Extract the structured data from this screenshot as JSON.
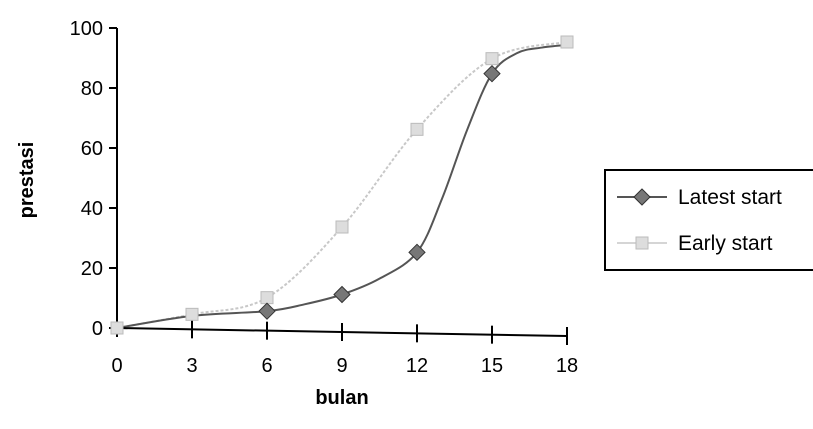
{
  "chart_data": {
    "type": "line",
    "xlabel": "bulan",
    "ylabel": "prestasi",
    "x_ticks": [
      "0",
      "3",
      "6",
      "9",
      "12",
      "15",
      "18"
    ],
    "y_ticks": [
      "0",
      "20",
      "40",
      "60",
      "80",
      "100"
    ],
    "xlim": [
      0,
      18
    ],
    "ylim": [
      0,
      100
    ],
    "grid": false,
    "legend_position": "right",
    "series": [
      {
        "name": "Latest start",
        "color": "#555555",
        "marker": "diamond",
        "curve": [
          [
            0,
            0
          ],
          [
            3,
            4.5
          ],
          [
            6,
            6.5
          ],
          [
            7.5,
            9
          ],
          [
            9,
            12.5
          ],
          [
            10.5,
            18
          ],
          [
            12,
            27
          ],
          [
            13,
            45
          ],
          [
            14,
            68
          ],
          [
            15,
            87
          ],
          [
            16,
            94
          ],
          [
            17,
            96
          ],
          [
            18,
            97
          ]
        ],
        "points": [
          [
            6,
            6.5
          ],
          [
            9,
            12.5
          ],
          [
            12,
            27
          ],
          [
            15,
            87
          ]
        ]
      },
      {
        "name": "Early start",
        "color": "#c8c8c8",
        "marker": "square",
        "curve": [
          [
            0,
            0
          ],
          [
            3,
            5
          ],
          [
            6,
            11
          ],
          [
            9,
            35
          ],
          [
            12,
            68
          ],
          [
            15,
            92
          ],
          [
            18,
            98
          ]
        ],
        "points": [
          [
            0,
            0
          ],
          [
            3,
            5
          ],
          [
            6,
            11
          ],
          [
            9,
            35
          ],
          [
            12,
            68
          ],
          [
            15,
            92
          ],
          [
            18,
            98
          ]
        ]
      }
    ]
  }
}
